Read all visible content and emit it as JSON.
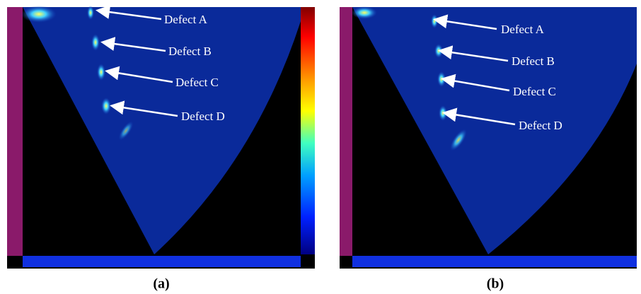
{
  "panels": [
    {
      "label": "(a)",
      "annotations": [
        "Defect A",
        "Defect B",
        "Defect C",
        "Defect D"
      ]
    },
    {
      "label": "(b)",
      "annotations": [
        "Defect A",
        "Defect B",
        "Defect C",
        "Defect D"
      ]
    }
  ]
}
